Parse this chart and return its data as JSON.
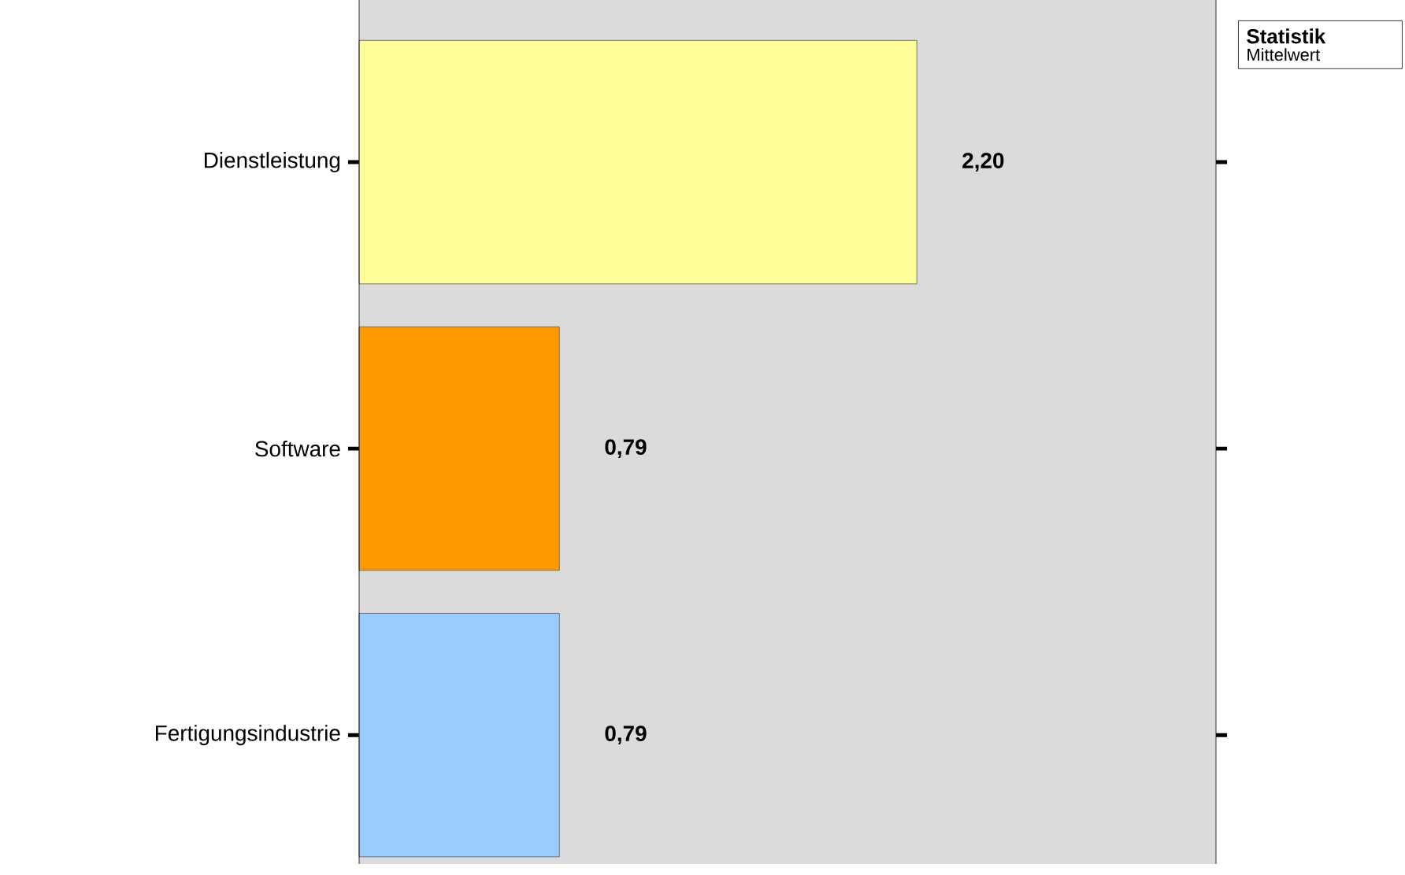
{
  "chart_data": {
    "type": "bar",
    "orientation": "horizontal",
    "categories": [
      "Dienstleistung",
      "Software",
      "Fertigungsindustrie"
    ],
    "series": [
      {
        "name": "Mittelwert",
        "colors": [
          "#ffff99",
          "#ff9900",
          "#99ccff"
        ],
        "values": [
          2.2,
          0.79,
          0.79
        ],
        "value_labels": [
          "2,20",
          "0,79",
          "0,79"
        ]
      }
    ],
    "xlim": [
      0,
      3.38
    ],
    "legend_title": "Statistik",
    "legend": "top right"
  }
}
